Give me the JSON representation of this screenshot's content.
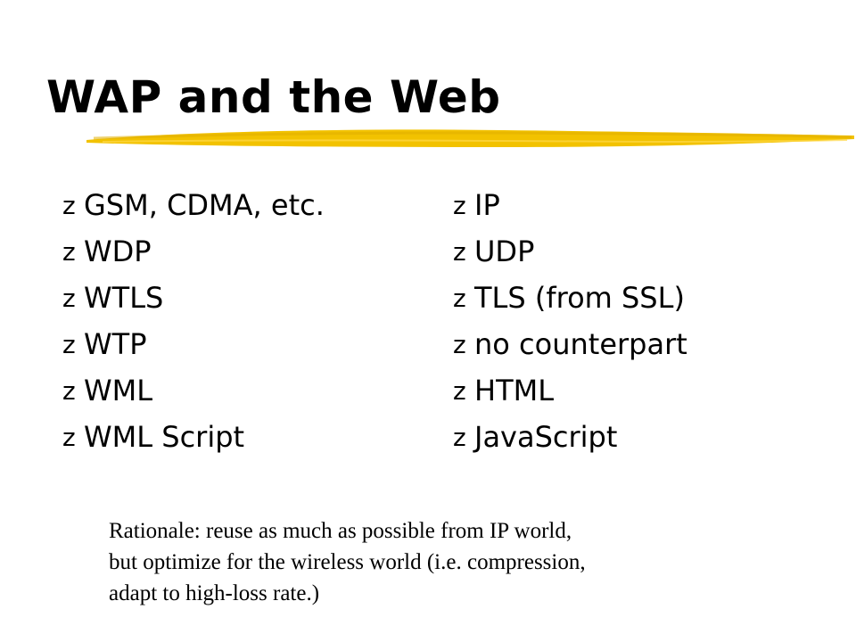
{
  "title": "WAP and the Web",
  "bullet_glyph": "z",
  "left_items": [
    "GSM, CDMA, etc.",
    "WDP",
    "WTLS",
    "WTP",
    "WML",
    "WML Script"
  ],
  "right_items": [
    "IP",
    "UDP",
    "TLS (from SSL)",
    "no counterpart",
    "HTML",
    "JavaScript"
  ],
  "note_lines": [
    "Rationale: reuse as much as possible from IP world,",
    "but optimize for the wireless world (i.e. compression,",
    "adapt to high-loss rate.)"
  ],
  "colors": {
    "accent": "#f2c200",
    "text": "#000000",
    "background": "#ffffff"
  }
}
